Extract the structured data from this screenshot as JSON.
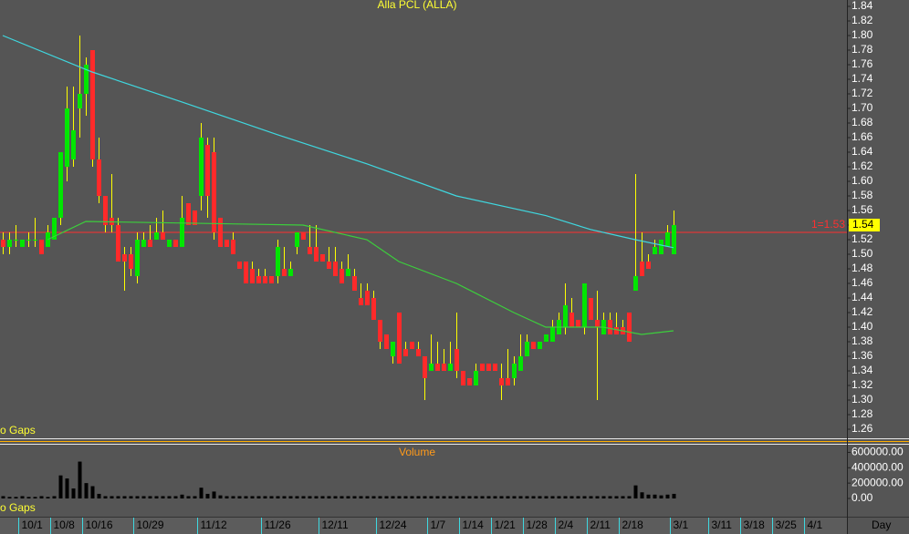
{
  "chart_data": [
    {
      "type": "candlestick",
      "title": "Alla PCL (ALLA)",
      "note": "o Gaps",
      "ylim": [
        1.25,
        1.85
      ],
      "yticks": [
        1.26,
        1.28,
        {
          "value": 1.3,
          "label": "1.30"
        },
        1.32,
        1.34,
        1.36,
        1.38,
        {
          "value": 1.4,
          "label": "1.40"
        },
        1.42,
        1.44,
        1.46,
        1.48,
        {
          "value": 1.5,
          "label": "1.50"
        },
        1.52,
        1.54,
        1.56,
        1.58,
        {
          "value": 1.6,
          "label": "1.60"
        },
        1.62,
        1.64,
        1.66,
        1.68,
        {
          "value": 1.7,
          "label": "1.70"
        },
        1.72,
        1.74,
        1.76,
        1.78,
        {
          "value": 1.8,
          "label": "1.80"
        },
        1.82,
        1.84
      ],
      "up_color": "#00e600",
      "down_color": "#ff2a2a",
      "wick_color": "#ffff00",
      "open": [
        1.52,
        1.51,
        1.52,
        1.51,
        1.52,
        1.52,
        1.52,
        1.51,
        1.52,
        1.55,
        1.62,
        1.63,
        1.7,
        1.72,
        1.78,
        1.63,
        1.58,
        1.55,
        1.54,
        1.5,
        1.5,
        1.47,
        1.51,
        1.52,
        1.52,
        1.53,
        1.51,
        1.52,
        1.51,
        1.57,
        1.56,
        1.58,
        1.65,
        1.64,
        1.55,
        1.52,
        1.52,
        1.49,
        1.49,
        1.48,
        1.47,
        1.47,
        1.47,
        1.47,
        1.48,
        1.47,
        1.51,
        1.53,
        1.51,
        1.51,
        1.5,
        1.49,
        1.49,
        1.48,
        1.47,
        1.47,
        1.44,
        1.45,
        1.44,
        1.41,
        1.39,
        1.36,
        1.42,
        1.37,
        1.38,
        1.37,
        1.36,
        1.34,
        1.35,
        1.35,
        1.34,
        1.37,
        1.34,
        1.33,
        1.32,
        1.35,
        1.35,
        1.35,
        1.33,
        1.33,
        1.33,
        1.34,
        1.36,
        1.38,
        1.37,
        1.38,
        1.38,
        1.39,
        1.4,
        1.42,
        1.41,
        1.4,
        1.44,
        1.41,
        1.39,
        1.41,
        1.4,
        1.4,
        1.42,
        1.45,
        1.49,
        1.49,
        1.5,
        1.5,
        1.51,
        1.5
      ],
      "high": [
        1.53,
        1.53,
        1.54,
        1.52,
        1.53,
        1.55,
        1.52,
        1.54,
        1.55,
        1.64,
        1.73,
        1.73,
        1.8,
        1.77,
        1.78,
        1.66,
        1.58,
        1.61,
        1.55,
        1.51,
        1.51,
        1.53,
        1.53,
        1.54,
        1.55,
        1.56,
        1.52,
        1.52,
        1.58,
        1.57,
        1.56,
        1.68,
        1.66,
        1.66,
        1.55,
        1.52,
        1.53,
        1.49,
        1.49,
        1.49,
        1.48,
        1.48,
        1.47,
        1.52,
        1.51,
        1.49,
        1.53,
        1.53,
        1.54,
        1.54,
        1.5,
        1.51,
        1.51,
        1.49,
        1.5,
        1.48,
        1.46,
        1.46,
        1.45,
        1.41,
        1.39,
        1.38,
        1.42,
        1.38,
        1.38,
        1.38,
        1.36,
        1.39,
        1.38,
        1.37,
        1.38,
        1.42,
        1.34,
        1.33,
        1.35,
        1.35,
        1.35,
        1.35,
        1.35,
        1.37,
        1.36,
        1.39,
        1.39,
        1.38,
        1.38,
        1.39,
        1.41,
        1.42,
        1.46,
        1.44,
        1.41,
        1.46,
        1.44,
        1.45,
        1.42,
        1.42,
        1.42,
        1.41,
        1.42,
        1.61,
        1.53,
        1.5,
        1.52,
        1.52,
        1.54,
        1.56
      ],
      "low": [
        1.5,
        1.5,
        1.51,
        1.51,
        1.51,
        1.51,
        1.5,
        1.51,
        1.52,
        1.54,
        1.6,
        1.62,
        1.66,
        1.69,
        1.62,
        1.57,
        1.53,
        1.53,
        1.49,
        1.45,
        1.47,
        1.46,
        1.51,
        1.51,
        1.52,
        1.52,
        1.51,
        1.51,
        1.51,
        1.54,
        1.54,
        1.56,
        1.55,
        1.52,
        1.51,
        1.51,
        1.5,
        1.48,
        1.46,
        1.46,
        1.46,
        1.46,
        1.46,
        1.46,
        1.47,
        1.47,
        1.5,
        1.52,
        1.5,
        1.49,
        1.49,
        1.48,
        1.47,
        1.46,
        1.47,
        1.45,
        1.43,
        1.43,
        1.41,
        1.37,
        1.37,
        1.35,
        1.35,
        1.36,
        1.37,
        1.36,
        1.3,
        1.34,
        1.34,
        1.34,
        1.34,
        1.33,
        1.32,
        1.32,
        1.32,
        1.34,
        1.34,
        1.34,
        1.3,
        1.32,
        1.32,
        1.34,
        1.36,
        1.37,
        1.37,
        1.38,
        1.38,
        1.39,
        1.39,
        1.4,
        1.4,
        1.39,
        1.41,
        1.3,
        1.39,
        1.39,
        1.39,
        1.39,
        1.38,
        1.45,
        1.47,
        1.48,
        1.5,
        1.5,
        1.51,
        1.5
      ],
      "close": [
        1.51,
        1.52,
        1.52,
        1.52,
        1.52,
        1.52,
        1.5,
        1.53,
        1.55,
        1.64,
        1.7,
        1.67,
        1.72,
        1.76,
        1.63,
        1.58,
        1.54,
        1.54,
        1.49,
        1.49,
        1.48,
        1.52,
        1.52,
        1.51,
        1.53,
        1.52,
        1.52,
        1.51,
        1.55,
        1.54,
        1.54,
        1.66,
        1.58,
        1.53,
        1.51,
        1.51,
        1.5,
        1.48,
        1.46,
        1.46,
        1.46,
        1.46,
        1.46,
        1.51,
        1.47,
        1.48,
        1.53,
        1.52,
        1.5,
        1.49,
        1.49,
        1.48,
        1.47,
        1.46,
        1.48,
        1.45,
        1.43,
        1.43,
        1.41,
        1.38,
        1.37,
        1.38,
        1.35,
        1.36,
        1.37,
        1.36,
        1.33,
        1.35,
        1.34,
        1.34,
        1.35,
        1.34,
        1.32,
        1.32,
        1.34,
        1.34,
        1.34,
        1.34,
        1.32,
        1.32,
        1.35,
        1.36,
        1.38,
        1.37,
        1.38,
        1.39,
        1.4,
        1.41,
        1.43,
        1.4,
        1.4,
        1.46,
        1.41,
        1.4,
        1.41,
        1.39,
        1.39,
        1.39,
        1.38,
        1.47,
        1.47,
        1.48,
        1.51,
        1.52,
        1.53,
        1.54
      ],
      "lines": [
        {
          "color": "#3fd8e0",
          "x": [
            0,
            14,
            28,
            43,
            57,
            71,
            85,
            92,
            99,
            105
          ],
          "values": [
            1.8,
            1.75,
            1.709,
            1.664,
            1.624,
            1.58,
            1.553,
            1.534,
            1.52,
            1.509
          ]
        },
        {
          "color": "#3ccf3c",
          "x": [
            7,
            13,
            47,
            57,
            62,
            71,
            80,
            85,
            94,
            100,
            105
          ],
          "values": [
            1.52,
            1.545,
            1.54,
            1.52,
            1.49,
            1.46,
            1.42,
            1.4,
            1.4,
            1.39,
            1.395
          ]
        }
      ],
      "hline": {
        "value": 1.53,
        "label": "1=1.53",
        "color": "#ff3030"
      }
    },
    {
      "type": "bar",
      "title": "Volume",
      "note": "o Gaps",
      "color": "#000000",
      "ylim": [
        0,
        700000
      ],
      "yticks": [
        {
          "value": 600000,
          "label": "600000.00"
        },
        {
          "value": 400000,
          "label": "400000.00"
        },
        {
          "value": 200000,
          "label": "200000.00"
        },
        {
          "value": 0,
          "label": "0.00"
        }
      ],
      "values": [
        30000,
        20000,
        20000,
        30000,
        20000,
        20000,
        30000,
        20000,
        30000,
        300000,
        260000,
        130000,
        480000,
        200000,
        160000,
        60000,
        30000,
        30000,
        30000,
        30000,
        30000,
        30000,
        30000,
        30000,
        30000,
        30000,
        30000,
        30000,
        50000,
        30000,
        30000,
        140000,
        60000,
        90000,
        40000,
        30000,
        30000,
        30000,
        30000,
        30000,
        30000,
        30000,
        30000,
        30000,
        30000,
        30000,
        30000,
        30000,
        30000,
        30000,
        30000,
        30000,
        30000,
        30000,
        30000,
        30000,
        30000,
        30000,
        30000,
        30000,
        30000,
        30000,
        30000,
        30000,
        30000,
        30000,
        30000,
        30000,
        30000,
        30000,
        30000,
        30000,
        30000,
        30000,
        30000,
        30000,
        30000,
        30000,
        30000,
        30000,
        30000,
        30000,
        30000,
        30000,
        30000,
        30000,
        30000,
        30000,
        30000,
        30000,
        30000,
        30000,
        30000,
        30000,
        30000,
        30000,
        30000,
        30000,
        30000,
        170000,
        80000,
        50000,
        50000,
        40000,
        50000,
        60000
      ],
      "xticks": [
        {
          "value": 3,
          "label": "10/1"
        },
        {
          "value": 8,
          "label": "10/8"
        },
        {
          "value": 13,
          "label": "10/16"
        },
        {
          "value": 21,
          "label": "10/29"
        },
        {
          "value": 31,
          "label": "11/12"
        },
        {
          "value": 41,
          "label": "11/26"
        },
        {
          "value": 50,
          "label": "12/11"
        },
        {
          "value": 59,
          "label": "12/24"
        },
        {
          "value": 67,
          "label": "1/7"
        },
        {
          "value": 72,
          "label": "1/14"
        },
        {
          "value": 77,
          "label": "1/21"
        },
        {
          "value": 82,
          "label": "1/28"
        },
        {
          "value": 87,
          "label": "2/4"
        },
        {
          "value": 92,
          "label": "2/11"
        },
        {
          "value": 97,
          "label": "2/18"
        },
        {
          "value": 105,
          "label": "3/1"
        },
        {
          "value": 111,
          "label": "3/11"
        },
        {
          "value": 116,
          "label": "3/18"
        },
        {
          "value": 121,
          "label": "3/25"
        },
        {
          "value": 126,
          "label": "4/1"
        }
      ],
      "x_label": "Day"
    }
  ]
}
